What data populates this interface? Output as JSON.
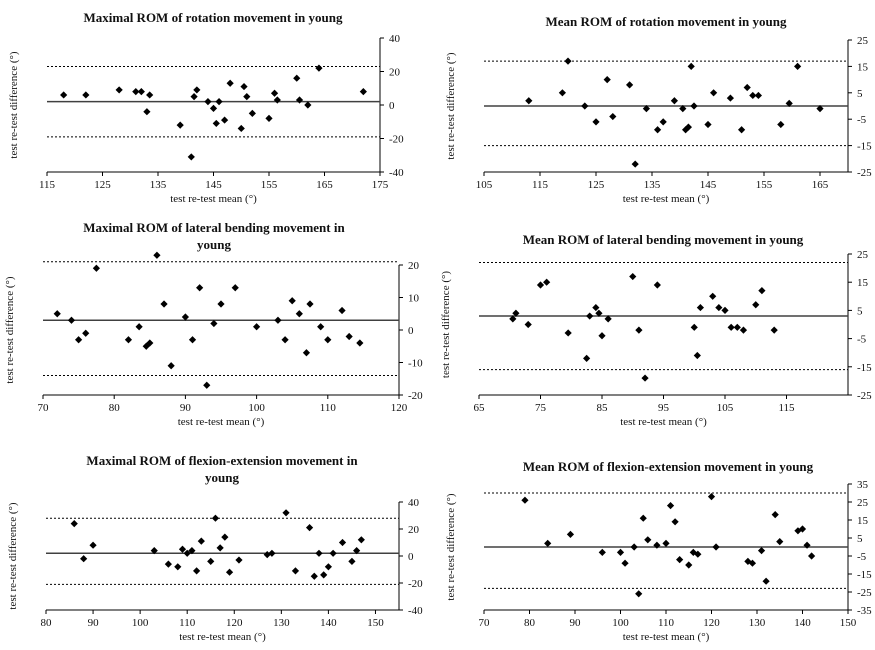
{
  "colors": {
    "marker": "#000000",
    "line": "#404040",
    "text": "#111111"
  },
  "chart_data": [
    {
      "type": "scatter",
      "title_lines": [
        "Maximal ROM of rotation movement in young"
      ],
      "xlabel": "test re-test mean (°)",
      "ylabel": "test re-test difference (°)",
      "xlim": [
        115,
        175
      ],
      "ylim": [
        -40,
        40
      ],
      "xticks": [
        115,
        125,
        135,
        145,
        155,
        165,
        175
      ],
      "yticks": [
        -40,
        -20,
        0,
        20,
        40
      ],
      "mean_line": 2,
      "limit_lines": [
        23,
        -19
      ],
      "x": [
        118,
        122,
        128,
        131,
        132,
        133,
        133.5,
        139,
        141,
        141.5,
        142,
        144,
        145,
        145.5,
        146,
        147,
        148,
        150,
        150.5,
        151,
        152,
        155,
        156,
        156.5,
        160,
        160.5,
        162,
        164,
        172
      ],
      "y": [
        6,
        6,
        9,
        8,
        8,
        -4,
        6,
        -12,
        -31,
        5,
        9,
        2,
        -2,
        -11,
        2,
        -9,
        13,
        -14,
        11,
        5,
        -5,
        -8,
        7,
        3,
        16,
        3,
        0,
        22,
        8
      ]
    },
    {
      "type": "scatter",
      "title_lines": [
        "Mean ROM of rotation movement in young"
      ],
      "xlabel": "test re-test mean (°)",
      "ylabel": "test re-test difference (°)",
      "xlim": [
        105,
        170
      ],
      "ylim": [
        -25,
        25
      ],
      "xticks": [
        105,
        115,
        125,
        135,
        145,
        155,
        165
      ],
      "yticks": [
        -25,
        -15,
        -5,
        5,
        15,
        25
      ],
      "mean_line": 0,
      "limit_lines": [
        17,
        -15
      ],
      "x": [
        113,
        119,
        120,
        123,
        125,
        127,
        128,
        131,
        132,
        134,
        136,
        137,
        139,
        140.5,
        141,
        141.5,
        142,
        142.5,
        145,
        146,
        149,
        151,
        152,
        153,
        154,
        158,
        159.5,
        161,
        165
      ],
      "y": [
        2,
        5,
        17,
        0,
        -6,
        10,
        -4,
        8,
        -22,
        -1,
        -9,
        -6,
        2,
        -1,
        -9,
        -8,
        15,
        0,
        -7,
        5,
        3,
        -9,
        7,
        4,
        4,
        -7,
        1,
        15,
        -1
      ]
    },
    {
      "type": "scatter",
      "title_lines": [
        "Maximal ROM of lateral bending movement in",
        "young"
      ],
      "xlabel": "test re-test mean (°)",
      "ylabel": "test re-test difference (°)",
      "xlim": [
        70,
        120
      ],
      "ylim": [
        -20,
        20
      ],
      "xticks": [
        70,
        80,
        90,
        100,
        110,
        120
      ],
      "yticks": [
        -20,
        -10,
        0,
        10,
        20
      ],
      "mean_line": 3,
      "limit_lines": [
        21,
        -14
      ],
      "x": [
        72,
        74,
        75,
        76,
        77.5,
        82,
        83.5,
        84.5,
        85,
        86,
        87,
        88,
        90,
        91,
        92,
        93,
        94,
        95,
        97,
        100,
        103,
        104,
        105,
        106,
        107,
        107.5,
        109,
        110,
        112,
        113,
        114.5
      ],
      "y": [
        5,
        3,
        -3,
        -1,
        19,
        -3,
        1,
        -5,
        -4,
        23,
        8,
        -11,
        4,
        -3,
        13,
        -17,
        2,
        8,
        13,
        1,
        3,
        -3,
        9,
        5,
        -7,
        8,
        1,
        -3,
        6,
        -2,
        -4
      ]
    },
    {
      "type": "scatter",
      "title_lines": [
        "Mean ROM of lateral bending movement in young"
      ],
      "xlabel": "test re-test mean (°)",
      "ylabel": "test re-test difference (°)",
      "xlim": [
        65,
        125
      ],
      "ylim": [
        -25,
        25
      ],
      "xticks": [
        65,
        75,
        85,
        95,
        105,
        115
      ],
      "yticks": [
        -25,
        -15,
        -5,
        5,
        15,
        25
      ],
      "mean_line": 3,
      "limit_lines": [
        22,
        -16
      ],
      "x": [
        70.5,
        71,
        73,
        75,
        76,
        79.5,
        82.5,
        83,
        84,
        84.5,
        85,
        86,
        90,
        91,
        92,
        94,
        100,
        100.5,
        101,
        103,
        104,
        105,
        106,
        107,
        108,
        110,
        111,
        113
      ],
      "y": [
        2,
        4,
        0,
        14,
        15,
        -3,
        -12,
        3,
        6,
        4,
        -4,
        2,
        17,
        -2,
        -19,
        14,
        -1,
        -11,
        6,
        10,
        6,
        5,
        -1,
        -1,
        -2,
        7,
        12,
        -2
      ]
    },
    {
      "type": "scatter",
      "title_lines": [
        "Maximal ROM of flexion-extension movement in",
        "young"
      ],
      "xlabel": "test re-test mean (°)",
      "ylabel": "test re-test difference (°)",
      "xlim": [
        80,
        155
      ],
      "ylim": [
        -40,
        40
      ],
      "xticks": [
        80,
        90,
        100,
        110,
        120,
        130,
        140,
        150
      ],
      "yticks": [
        -40,
        -20,
        0,
        20,
        40
      ],
      "mean_line": 2,
      "limit_lines": [
        28,
        -21
      ],
      "x": [
        86,
        88,
        90,
        103,
        106,
        108,
        109,
        110,
        111,
        112,
        113,
        115,
        116,
        117,
        118,
        119,
        121,
        127,
        128,
        131,
        133,
        136,
        137,
        138,
        139,
        140,
        141,
        143,
        145,
        146,
        147
      ],
      "y": [
        24,
        -2,
        8,
        4,
        -6,
        -8,
        5,
        2,
        4,
        -11,
        11,
        -4,
        28,
        6,
        14,
        -12,
        -3,
        1,
        2,
        32,
        -11,
        21,
        -15,
        2,
        -14,
        -8,
        2,
        10,
        -4,
        4,
        12
      ]
    },
    {
      "type": "scatter",
      "title_lines": [
        "Mean ROM of flexion-extension movement in young"
      ],
      "xlabel": "test re-test mean (°)",
      "ylabel": "test re-test difference (°)",
      "xlim": [
        70,
        150
      ],
      "ylim": [
        -35,
        35
      ],
      "xticks": [
        70,
        80,
        90,
        100,
        110,
        120,
        130,
        140,
        150
      ],
      "yticks": [
        -35,
        -25,
        -15,
        -5,
        5,
        15,
        25,
        35
      ],
      "mean_line": 0,
      "limit_lines": [
        30,
        -23
      ],
      "x": [
        79,
        84,
        89,
        96,
        100,
        101,
        103,
        104,
        105,
        106,
        108,
        110,
        111,
        112,
        113,
        115,
        116,
        117,
        120,
        121,
        128,
        129,
        131,
        132,
        134,
        135,
        139,
        140,
        141,
        142
      ],
      "y": [
        26,
        2,
        7,
        -3,
        -3,
        -9,
        0,
        -26,
        16,
        4,
        1,
        2,
        23,
        14,
        -7,
        -10,
        -3,
        -4,
        28,
        0,
        -8,
        -9,
        -2,
        -19,
        18,
        3,
        9,
        10,
        1,
        -5
      ]
    }
  ]
}
